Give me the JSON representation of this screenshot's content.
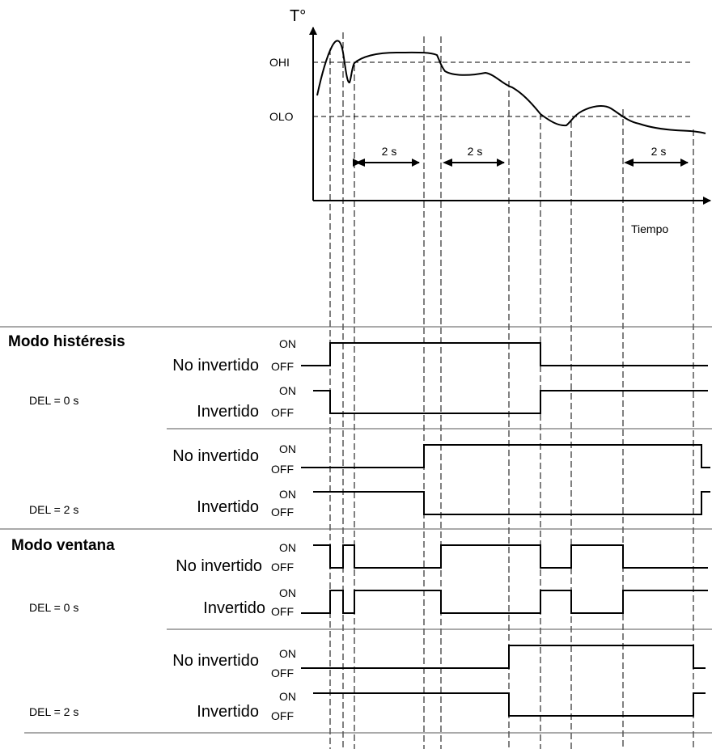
{
  "graph": {
    "y_axis_label": "T°",
    "x_axis_label": "Tiempo",
    "ohi_label": "OHI",
    "olo_label": "OLO",
    "delay_labels": [
      "2 s",
      "2 s",
      "2 s"
    ]
  },
  "sections": [
    {
      "title": "Modo histéresis"
    },
    {
      "title": "Modo ventana"
    }
  ],
  "level_labels": {
    "on": "ON",
    "off": "OFF"
  },
  "groups": [
    {
      "del_label": "DEL = 0 s",
      "rows": [
        {
          "label": "No invertido"
        },
        {
          "label": "Invertido"
        }
      ]
    },
    {
      "del_label": "DEL = 2 s",
      "rows": [
        {
          "label": "No invertido"
        },
        {
          "label": "Invertido"
        }
      ]
    },
    {
      "del_label": "DEL = 0 s",
      "rows": [
        {
          "label": "No invertido"
        },
        {
          "label": "Invertido"
        }
      ]
    },
    {
      "del_label": "DEL = 2 s",
      "rows": [
        {
          "label": "No invertido"
        },
        {
          "label": "Invertido"
        }
      ]
    }
  ]
}
